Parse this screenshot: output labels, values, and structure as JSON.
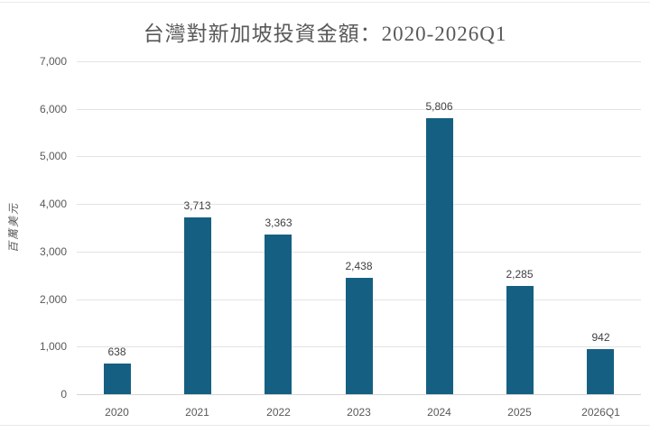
{
  "window": {
    "background": "#FFFFFF"
  },
  "chart_data": {
    "type": "bar",
    "title": "台灣對新加坡投資金額：2020-2026Q1",
    "categories": [
      "2020",
      "2021",
      "2022",
      "2023",
      "2024",
      "2025",
      "2026Q1"
    ],
    "values": [
      638,
      3713,
      3363,
      2438,
      5806,
      2285,
      942
    ],
    "value_labels": [
      "638",
      "3,713",
      "3,363",
      "2,438",
      "5,806",
      "2,285",
      "942"
    ],
    "xlabel": "",
    "ylabel": "百萬美元",
    "ylim": [
      0,
      7000
    ],
    "ytick_step": 1000,
    "ytick_labels": [
      "0",
      "1,000",
      "2,000",
      "3,000",
      "4,000",
      "5,000",
      "6,000",
      "7,000"
    ],
    "grid": true,
    "legend": false,
    "colors": {
      "bar": "#156082",
      "title_text": "#595959",
      "axis_text": "#595959",
      "data_label_text": "#404040",
      "gridline": "#E3E3E3",
      "axis_line": "#D6D6D6",
      "frame_line": "#EAEAEA"
    }
  }
}
